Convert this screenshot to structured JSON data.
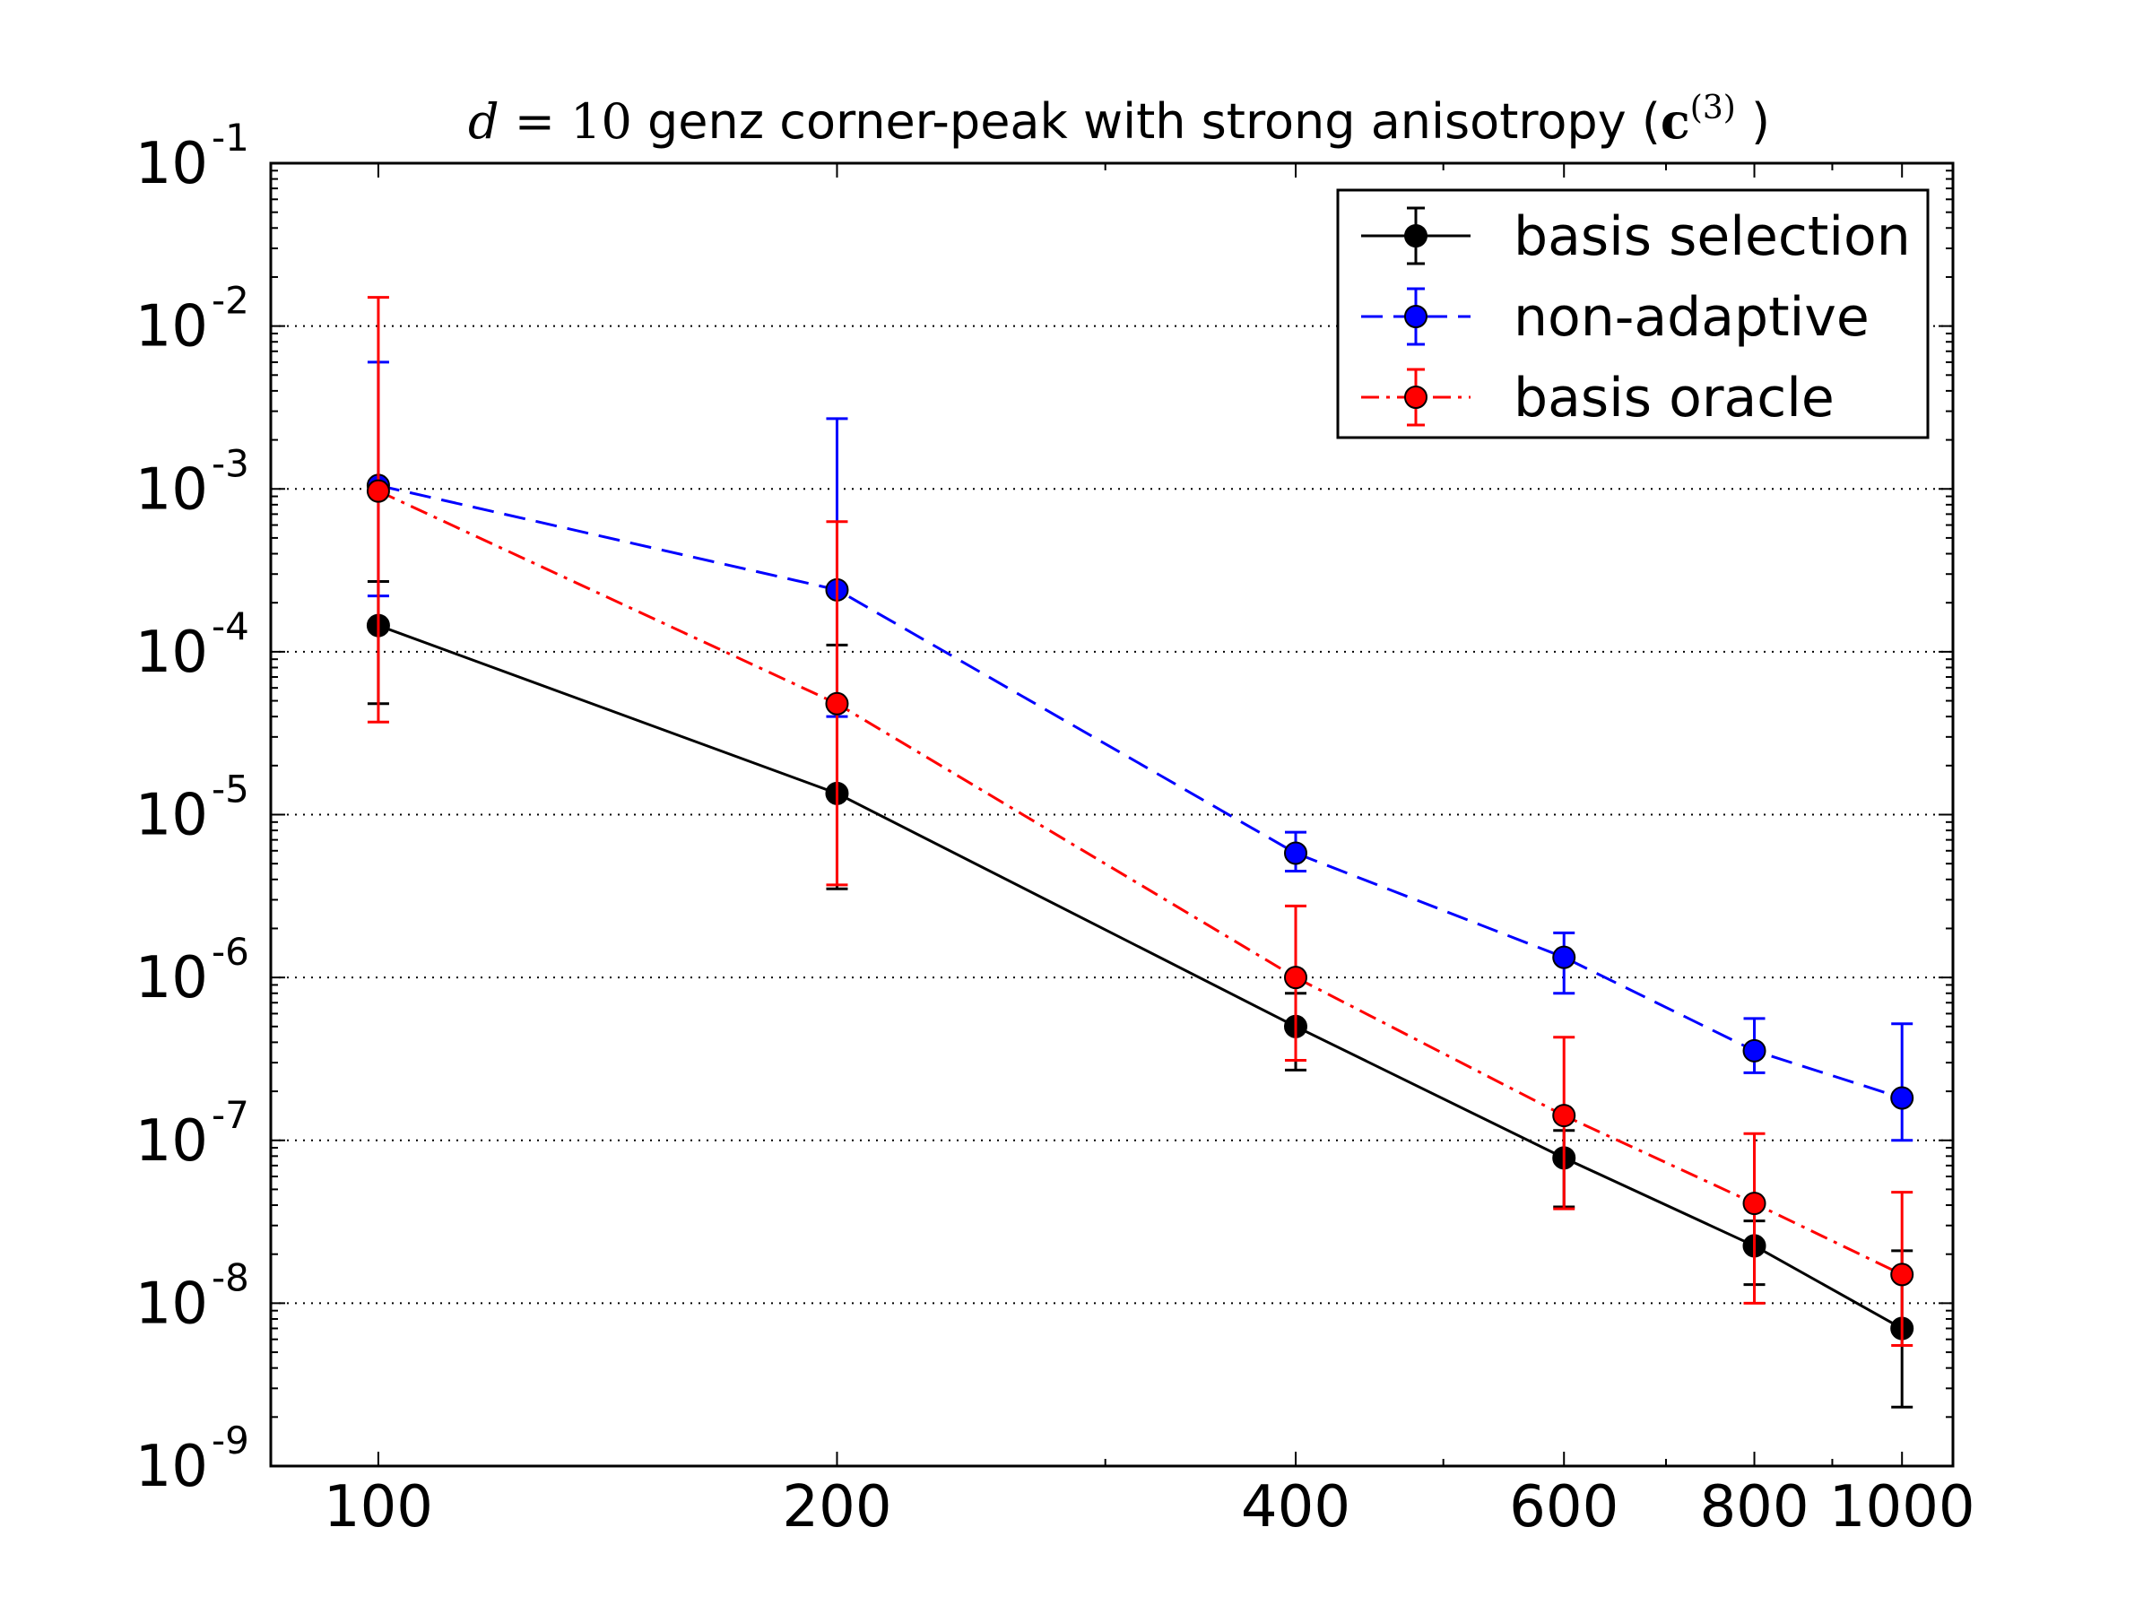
{
  "chart_data": {
    "type": "line",
    "title": {
      "math_var": "d",
      "math_eq": " = ",
      "math_num": "10",
      "text": " genz corner-peak with strong anisotropy (",
      "vector": "c",
      "superscript": "(3)",
      "close": " )"
    },
    "xscale": "log",
    "yscale": "log",
    "xlim": [
      85,
      1080
    ],
    "ylim": [
      1e-09,
      0.1
    ],
    "x": [
      100,
      200,
      400,
      600,
      800,
      1000
    ],
    "x_tick_labels": [
      "100",
      "200",
      "400",
      "600",
      "800",
      "1000"
    ],
    "y_ticks": [
      {
        "value": 1e-09,
        "base": "10",
        "exp": "-9"
      },
      {
        "value": 1e-08,
        "base": "10",
        "exp": "-8"
      },
      {
        "value": 1e-07,
        "base": "10",
        "exp": "-7"
      },
      {
        "value": 1e-06,
        "base": "10",
        "exp": "-6"
      },
      {
        "value": 1e-05,
        "base": "10",
        "exp": "-5"
      },
      {
        "value": 0.0001,
        "base": "10",
        "exp": "-4"
      },
      {
        "value": 0.001,
        "base": "10",
        "exp": "-3"
      },
      {
        "value": 0.01,
        "base": "10",
        "exp": "-2"
      },
      {
        "value": 0.1,
        "base": "10",
        "exp": "-1"
      }
    ],
    "grid": "y-major-dotted",
    "legend_position": "top-right",
    "series": [
      {
        "name": "basis selection",
        "key": "basis-selection",
        "color": "#000000",
        "line_style": "solid",
        "values": [
          0.000145,
          1.35e-05,
          5e-07,
          7.8e-08,
          2.25e-08,
          7e-09
        ],
        "err_low": [
          4.8e-05,
          3.5e-06,
          2.7e-07,
          3.9e-08,
          1.3e-08,
          2.3e-09
        ],
        "err_high": [
          0.00027,
          0.00011,
          8e-07,
          1.15e-07,
          3.2e-08,
          2.1e-08
        ]
      },
      {
        "name": "non-adaptive",
        "key": "non-adaptive",
        "color": "#0000ff",
        "line_style": "dashed",
        "values": [
          0.00105,
          0.00024,
          5.8e-06,
          1.33e-06,
          3.55e-07,
          1.82e-07
        ],
        "err_low": [
          0.00022,
          4e-05,
          4.5e-06,
          8e-07,
          2.6e-07,
          1e-07
        ],
        "err_high": [
          0.006,
          0.0027,
          7.8e-06,
          1.88e-06,
          5.6e-07,
          5.2e-07
        ]
      },
      {
        "name": "basis oracle",
        "key": "basis-oracle",
        "color": "#ff0000",
        "line_style": "dashdot",
        "values": [
          0.00097,
          4.8e-05,
          1e-06,
          1.42e-07,
          4.1e-08,
          1.5e-08
        ],
        "err_low": [
          3.7e-05,
          3.7e-06,
          3.1e-07,
          3.8e-08,
          1e-08,
          5.5e-09
        ],
        "err_high": [
          0.015,
          0.00063,
          2.75e-06,
          4.3e-07,
          1.1e-07,
          4.8e-08
        ]
      }
    ]
  }
}
